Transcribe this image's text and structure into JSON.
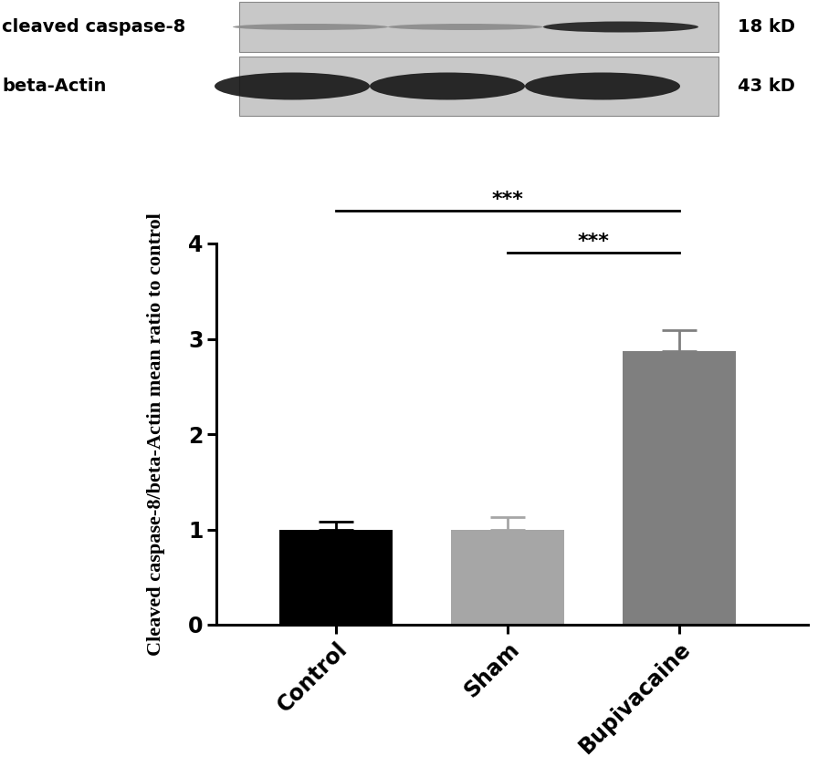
{
  "chart_data": {
    "type": "bar",
    "categories": [
      "Control",
      "Sham",
      "Bupivacaine"
    ],
    "values": [
      1.0,
      1.0,
      2.87
    ],
    "errors": [
      0.08,
      0.13,
      0.22
    ],
    "colors": [
      "#000000",
      "#a6a6a6",
      "#7f7f7f"
    ],
    "y_label": "Cleaved caspase-8/beta-Actin mean ratio to control",
    "ylim": [
      0,
      4
    ],
    "yticks": [
      0,
      1,
      2,
      3,
      4
    ],
    "grid": false,
    "significance": [
      {
        "from": "Control",
        "to": "Bupivacaine",
        "label": "***"
      },
      {
        "from": "Sham",
        "to": "Bupivacaine",
        "label": "***"
      }
    ]
  },
  "blot": {
    "rows": [
      {
        "label": "cleaved caspase-8",
        "size": "18 kD"
      },
      {
        "label": "beta-Actin",
        "size": "43 kD"
      }
    ]
  }
}
